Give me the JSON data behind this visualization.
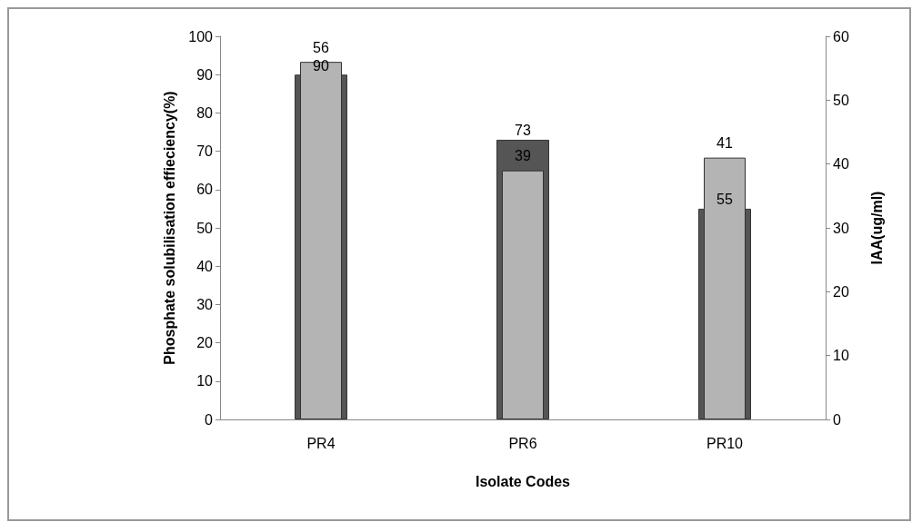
{
  "chart_data": {
    "type": "bar",
    "xlabel": "Isolate Codes",
    "ylabel": "Phosphate solubilisation effieciency(%)",
    "y2label": "IAA(ug/ml)",
    "categories": [
      "PR4",
      "PR6",
      "PR10"
    ],
    "series": [
      {
        "color": "#555555",
        "values": [
          90,
          73,
          55
        ]
      },
      {
        "color": "#b4b4b4",
        "values": [
          56,
          39,
          41
        ],
        "axis": "y2"
      }
    ],
    "ylim": [
      0,
      100
    ],
    "yticks": [
      0,
      10,
      20,
      30,
      40,
      50,
      60,
      70,
      80,
      90,
      100
    ],
    "y2lim": [
      0,
      60
    ],
    "y2ticks": [
      0,
      10,
      20,
      30,
      40,
      50,
      60
    ],
    "data_labels": true,
    "grid": false
  }
}
